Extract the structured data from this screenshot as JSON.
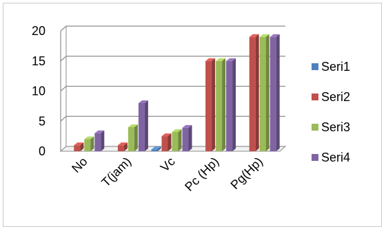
{
  "chart_data": {
    "type": "bar",
    "categories": [
      "No",
      "T(jam)",
      "Vc",
      "Pc (Hp)",
      "Pg(Hp)"
    ],
    "series": [
      {
        "name": "Seri1",
        "values": [
          0,
          0,
          0.3,
          0,
          0
        ],
        "color": "#4f81bd"
      },
      {
        "name": "Seri2",
        "values": [
          1,
          1,
          2.5,
          15,
          19
        ],
        "color": "#c0504d"
      },
      {
        "name": "Seri3",
        "values": [
          2,
          4,
          3.2,
          15,
          19
        ],
        "color": "#9bbb59"
      },
      {
        "name": "Seri4",
        "values": [
          3,
          8,
          3.9,
          15,
          19
        ],
        "color": "#8064a2"
      }
    ],
    "yticks": [
      0,
      5,
      10,
      15,
      20
    ],
    "ylim": [
      0,
      20
    ],
    "grid": true,
    "legend": "right",
    "style": "3d-clustered-column"
  }
}
